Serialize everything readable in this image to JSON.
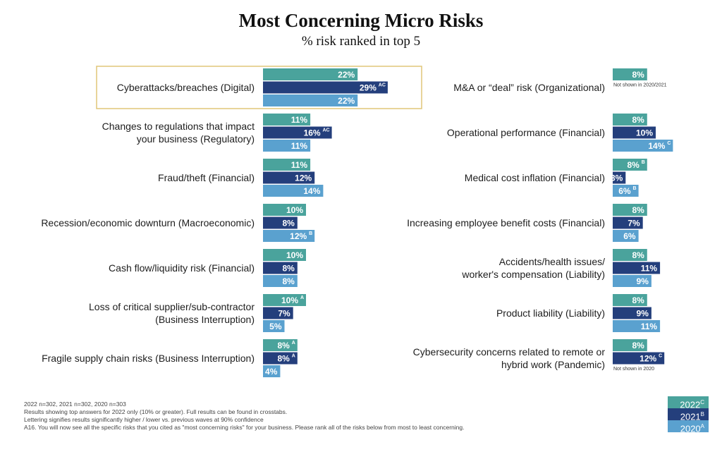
{
  "title": "Most Concerning Micro Risks",
  "subtitle": "% risk ranked in top 5",
  "colors": {
    "2022": "#4aa39c",
    "2021": "#243f7c",
    "2020": "#5aa1cf",
    "highlight": "#e0c679"
  },
  "legend": [
    {
      "label": "2022",
      "sup": "C"
    },
    {
      "label": "2021",
      "sup": "B"
    },
    {
      "label": "2020",
      "sup": "A"
    }
  ],
  "footnotes": [
    "2022 n=302, 2021 n=302, 2020 n=303",
    "Results showing top answers for 2022 only (10% or greater). Full results can be found in crosstabs.",
    "Lettering signifies results significantly higher / lower vs. previous waves at 90% confidence",
    "A16. You will now see all the specific risks that you cited as \"most concerning risks\" for your business. Please rank all of the risks below from most to least concerning."
  ],
  "chart_data": [
    {
      "type": "bar",
      "orientation": "horizontal",
      "series_names": [
        "2022",
        "2021",
        "2020"
      ],
      "categories": [
        {
          "label": [
            "Cyberattacks/breaches (Digital)"
          ],
          "values": [
            22,
            29,
            22
          ],
          "sups": [
            "",
            "AC",
            ""
          ],
          "highlight": true
        },
        {
          "label": [
            "Changes to regulations that impact",
            "your business (Regulatory)"
          ],
          "values": [
            11,
            16,
            11
          ],
          "sups": [
            "",
            "AC",
            ""
          ]
        },
        {
          "label": [
            "Fraud/theft (Financial)"
          ],
          "values": [
            11,
            12,
            14
          ],
          "sups": [
            "",
            "",
            ""
          ]
        },
        {
          "label": [
            "Recession/economic downturn (Macroeconomic)"
          ],
          "values": [
            10,
            8,
            12
          ],
          "sups": [
            "",
            "",
            "B"
          ]
        },
        {
          "label": [
            "Cash flow/liquidity risk (Financial)"
          ],
          "values": [
            10,
            8,
            8
          ],
          "sups": [
            "",
            "",
            ""
          ]
        },
        {
          "label": [
            "Loss of critical supplier/sub-contractor",
            "(Business Interruption)"
          ],
          "values": [
            10,
            7,
            5
          ],
          "sups": [
            "A",
            "",
            ""
          ]
        },
        {
          "label": [
            "Fragile supply chain risks (Business Interruption)"
          ],
          "values": [
            8,
            8,
            4
          ],
          "sups": [
            "A",
            "A",
            ""
          ]
        }
      ]
    },
    {
      "type": "bar",
      "orientation": "horizontal",
      "series_names": [
        "2022",
        "2021",
        "2020"
      ],
      "categories": [
        {
          "label": [
            "M&A or “deal” risk (Organizational)"
          ],
          "values": [
            8,
            null,
            null
          ],
          "sups": [
            "",
            "",
            ""
          ],
          "note": "Not shown in 2020/2021"
        },
        {
          "label": [
            "Operational performance (Financial)"
          ],
          "values": [
            8,
            10,
            14
          ],
          "sups": [
            "",
            "",
            "C"
          ]
        },
        {
          "label": [
            "Medical cost inflation (Financial)"
          ],
          "values": [
            8,
            3,
            6
          ],
          "sups": [
            "B",
            "",
            "B"
          ]
        },
        {
          "label": [
            "Increasing employee benefit costs (Financial)"
          ],
          "values": [
            8,
            7,
            6
          ],
          "sups": [
            "",
            "",
            ""
          ]
        },
        {
          "label": [
            "Accidents/health issues/",
            "worker's compensation (Liability)"
          ],
          "values": [
            8,
            11,
            9
          ],
          "sups": [
            "",
            "",
            ""
          ]
        },
        {
          "label": [
            "Product liability (Liability)"
          ],
          "values": [
            8,
            9,
            11
          ],
          "sups": [
            "",
            "",
            ""
          ]
        },
        {
          "label": [
            "Cybersecurity concerns related to remote or",
            "hybrid work (Pandemic)"
          ],
          "values": [
            8,
            12,
            null
          ],
          "sups": [
            "",
            "C",
            ""
          ],
          "note": "Not shown in 2020"
        }
      ]
    }
  ]
}
